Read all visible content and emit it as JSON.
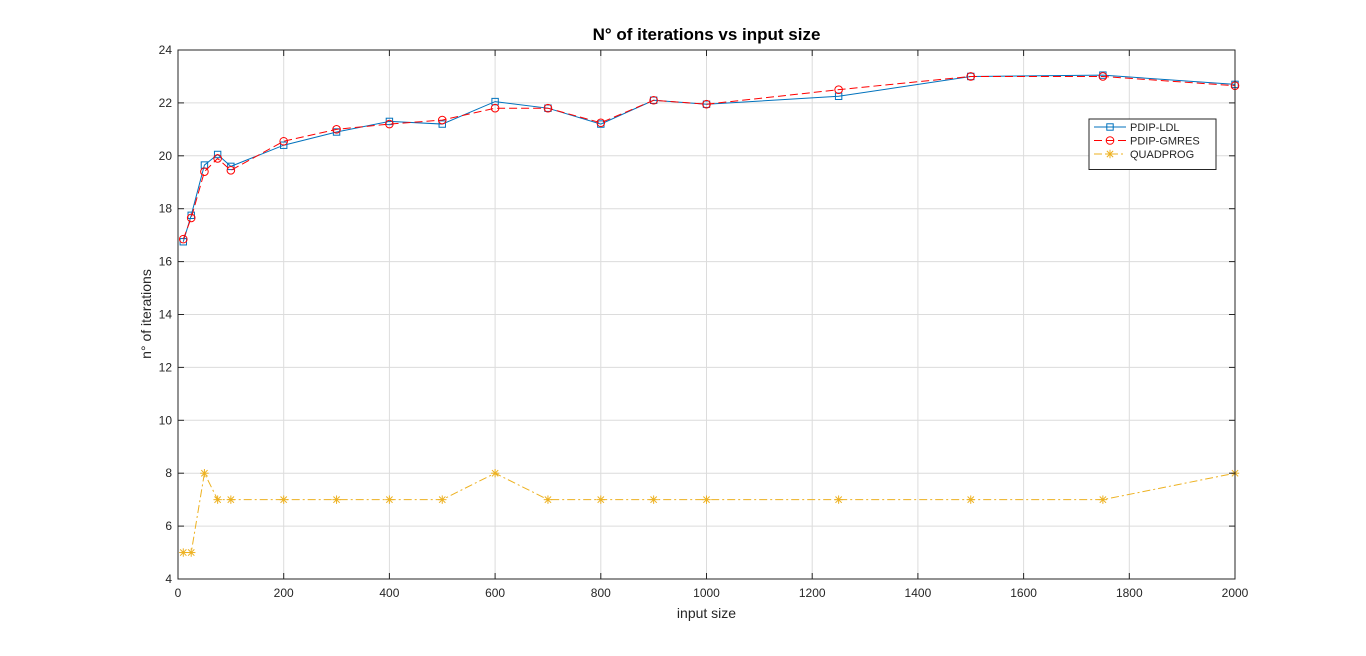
{
  "chart_data": {
    "type": "line",
    "title": "N° of iterations vs input size",
    "xlabel": "input size",
    "ylabel": "n° of iterations",
    "xlim": [
      0,
      2000
    ],
    "ylim": [
      4,
      24
    ],
    "xticks": [
      0,
      200,
      400,
      600,
      800,
      1000,
      1200,
      1400,
      1600,
      1800,
      2000
    ],
    "yticks": [
      4,
      6,
      8,
      10,
      12,
      14,
      16,
      18,
      20,
      22,
      24
    ],
    "grid": true,
    "legend_position": "top-right",
    "x": [
      10,
      25,
      50,
      75,
      100,
      200,
      300,
      400,
      500,
      600,
      700,
      800,
      900,
      1000,
      1250,
      1500,
      1750,
      2000
    ],
    "series": [
      {
        "name": "PDIP-LDL",
        "color": "#0072BD",
        "marker": "square",
        "line_style": "solid",
        "values": [
          16.75,
          17.75,
          19.65,
          20.05,
          19.6,
          20.4,
          20.9,
          21.3,
          21.2,
          22.05,
          21.8,
          21.2,
          22.1,
          21.95,
          22.25,
          23.0,
          23.05,
          22.7
        ]
      },
      {
        "name": "PDIP-GMRES",
        "color": "#FF0000",
        "marker": "circle",
        "line_style": "dashed",
        "values": [
          16.85,
          17.65,
          19.4,
          19.9,
          19.45,
          20.55,
          21.0,
          21.2,
          21.35,
          21.8,
          21.8,
          21.25,
          22.1,
          21.95,
          22.5,
          23.0,
          23.0,
          22.65
        ]
      },
      {
        "name": "QUADPROG",
        "color": "#EDB120",
        "marker": "asterisk",
        "line_style": "dash-dot",
        "values": [
          5,
          5,
          8,
          7,
          7,
          7,
          7,
          7,
          7,
          8,
          7,
          7,
          7,
          7,
          7,
          7,
          7,
          8
        ]
      }
    ]
  }
}
